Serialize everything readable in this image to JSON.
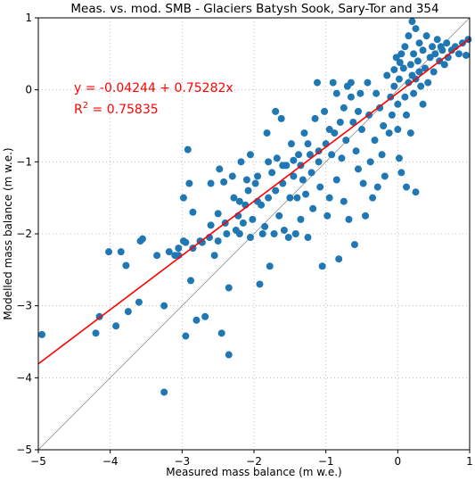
{
  "chart_data": {
    "type": "scatter",
    "title": "Meas. vs. mod. SMB - Glaciers Batysh Sook, Sary-Tor and 354",
    "xlabel": "Measured mass balance (m w.e.)",
    "ylabel": "Modelled mass balance (m w.e.)",
    "xlim": [
      -5,
      1
    ],
    "ylim": [
      -5,
      1
    ],
    "xticks": [
      -5,
      -4,
      -3,
      -2,
      -1,
      0,
      1
    ],
    "yticks": [
      -5,
      -4,
      -3,
      -2,
      -1,
      0,
      1
    ],
    "grid": true,
    "point_color": "#1f77b4",
    "fit_line_color": "#ff0000",
    "one_to_one_line_color": "#808080",
    "regression": {
      "intercept": -0.04244,
      "slope": 0.75282,
      "equation_text": "y = -0.04244 + 0.75282x",
      "r2_prefix": "R",
      "r2_sup": "2",
      "r2_rest": " = 0.75835"
    },
    "points": [
      [
        -4.95,
        -3.4
      ],
      [
        -4.2,
        -3.38
      ],
      [
        -4.15,
        -3.15
      ],
      [
        -4.02,
        -2.25
      ],
      [
        -3.92,
        -3.28
      ],
      [
        -3.85,
        -2.25
      ],
      [
        -3.78,
        -2.44
      ],
      [
        -3.75,
        -3.08
      ],
      [
        -3.6,
        -2.95
      ],
      [
        -3.55,
        -2.07
      ],
      [
        -3.58,
        -2.1
      ],
      [
        -3.25,
        -3.0
      ],
      [
        -3.25,
        -4.2
      ],
      [
        -3.18,
        -2.25
      ],
      [
        -3.1,
        -2.3
      ],
      [
        -3.05,
        -2.3
      ],
      [
        -2.98,
        -2.1
      ],
      [
        -2.95,
        -3.42
      ],
      [
        -2.95,
        -2.12
      ],
      [
        -2.98,
        -1.5
      ],
      [
        -2.9,
        -1.3
      ],
      [
        -2.92,
        -0.83
      ],
      [
        -2.88,
        -2.65
      ],
      [
        -2.85,
        -2.2
      ],
      [
        -2.8,
        -3.2
      ],
      [
        -2.75,
        -2.1
      ],
      [
        -2.72,
        -2.12
      ],
      [
        -2.68,
        -3.15
      ],
      [
        -2.62,
        -2.05
      ],
      [
        -2.6,
        -1.3
      ],
      [
        -2.55,
        -2.3
      ],
      [
        -2.5,
        -1.72
      ],
      [
        -2.5,
        -2.1
      ],
      [
        -2.48,
        -1.1
      ],
      [
        -2.45,
        -3.38
      ],
      [
        -2.42,
        -1.28
      ],
      [
        -2.4,
        -1.85
      ],
      [
        -2.38,
        -2.0
      ],
      [
        -2.35,
        -3.68
      ],
      [
        -2.35,
        -2.75
      ],
      [
        -2.3,
        -1.2
      ],
      [
        -2.28,
        -1.5
      ],
      [
        -2.25,
        -1.95
      ],
      [
        -2.22,
        -1.75
      ],
      [
        -2.2,
        -1.55
      ],
      [
        -2.2,
        -2.0
      ],
      [
        -2.18,
        -1.0
      ],
      [
        -2.15,
        -1.85
      ],
      [
        -2.12,
        -1.6
      ],
      [
        -2.1,
        -1.25
      ],
      [
        -2.08,
        -1.4
      ],
      [
        -2.05,
        -0.9
      ],
      [
        -2.05,
        -2.05
      ],
      [
        -2.02,
        -1.8
      ],
      [
        -1.98,
        -1.3
      ],
      [
        -1.95,
        -1.2
      ],
      [
        -1.92,
        -2.7
      ],
      [
        -1.9,
        -1.6
      ],
      [
        -1.88,
        -2.0
      ],
      [
        -1.85,
        -1.9
      ],
      [
        -1.82,
        -0.6
      ],
      [
        -1.8,
        -1.0
      ],
      [
        -1.8,
        -1.5
      ],
      [
        -1.78,
        -2.45
      ],
      [
        -1.75,
        -1.15
      ],
      [
        -1.72,
        -2.0
      ],
      [
        -1.7,
        -0.3
      ],
      [
        -1.68,
        -0.95
      ],
      [
        -1.65,
        -1.75
      ],
      [
        -1.62,
        -0.4
      ],
      [
        -1.6,
        -1.3
      ],
      [
        -1.58,
        -1.95
      ],
      [
        -1.55,
        -1.05
      ],
      [
        -1.52,
        -2.05
      ],
      [
        -1.5,
        -1.5
      ],
      [
        -1.48,
        -0.75
      ],
      [
        -1.45,
        -1.2
      ],
      [
        -1.42,
        -2.0
      ],
      [
        -1.4,
        -1.5
      ],
      [
        -1.38,
        -0.9
      ],
      [
        -1.35,
        -1.8
      ],
      [
        -1.32,
        -1.25
      ],
      [
        -1.3,
        -0.6
      ],
      [
        -1.28,
        -1.45
      ],
      [
        -1.25,
        -2.05
      ],
      [
        -1.22,
        -0.9
      ],
      [
        -1.2,
        -1.15
      ],
      [
        -1.18,
        -1.65
      ],
      [
        -1.15,
        -0.4
      ],
      [
        -1.12,
        0.1
      ],
      [
        -1.1,
        -1.0
      ],
      [
        -1.08,
        -1.35
      ],
      [
        -1.05,
        -2.45
      ],
      [
        -1.02,
        -0.3
      ],
      [
        -1.0,
        -0.75
      ],
      [
        -0.98,
        -1.75
      ],
      [
        -0.95,
        -1.5
      ],
      [
        -0.92,
        -0.9
      ],
      [
        -0.9,
        0.1
      ],
      [
        -0.88,
        -0.6
      ],
      [
        -0.85,
        -1.25
      ],
      [
        -0.82,
        -2.35
      ],
      [
        -0.8,
        -0.45
      ],
      [
        -0.78,
        -0.95
      ],
      [
        -0.75,
        -1.55
      ],
      [
        -0.72,
        -0.7
      ],
      [
        -0.7,
        0.05
      ],
      [
        -0.68,
        -1.8
      ],
      [
        -0.65,
        -0.1
      ],
      [
        -0.62,
        -0.45
      ],
      [
        -0.6,
        -2.15
      ],
      [
        -0.58,
        -0.85
      ],
      [
        -0.55,
        -1.1
      ],
      [
        -0.52,
        -0.05
      ],
      [
        -0.5,
        -0.55
      ],
      [
        -0.48,
        -1.3
      ],
      [
        -0.45,
        -1.75
      ],
      [
        -0.42,
        0.1
      ],
      [
        -0.4,
        -0.35
      ],
      [
        -0.38,
        -1.0
      ],
      [
        -0.35,
        -1.5
      ],
      [
        -0.32,
        -0.7
      ],
      [
        -0.3,
        -0.05
      ],
      [
        -0.28,
        -1.35
      ],
      [
        -0.25,
        -0.25
      ],
      [
        -0.22,
        -0.9
      ],
      [
        -0.2,
        -0.5
      ],
      [
        -0.18,
        -1.2
      ],
      [
        -0.15,
        0.2
      ],
      [
        -0.12,
        -0.6
      ],
      [
        -0.1,
        -0.1
      ],
      [
        -0.08,
        -0.35
      ],
      [
        -0.05,
        0.05
      ],
      [
        -0.02,
        0.45
      ],
      [
        0.0,
        -0.2
      ],
      [
        0.0,
        -0.55
      ],
      [
        0.02,
        0.15
      ],
      [
        0.02,
        -0.95
      ],
      [
        0.05,
        0.5
      ],
      [
        0.05,
        -1.15
      ],
      [
        0.08,
        0.3
      ],
      [
        0.1,
        -0.1
      ],
      [
        0.1,
        0.6
      ],
      [
        0.12,
        -0.35
      ],
      [
        0.12,
        -1.35
      ],
      [
        0.15,
        0.1
      ],
      [
        0.15,
        0.75
      ],
      [
        0.18,
        0.35
      ],
      [
        0.18,
        -0.6
      ],
      [
        0.2,
        0.95
      ],
      [
        0.2,
        0.2
      ],
      [
        0.22,
        0.5
      ],
      [
        0.22,
        -0.05
      ],
      [
        0.25,
        0.15
      ],
      [
        0.25,
        0.85
      ],
      [
        0.25,
        -1.42
      ],
      [
        0.28,
        0.4
      ],
      [
        0.3,
        0.25
      ],
      [
        0.3,
        0.65
      ],
      [
        0.32,
        0.05
      ],
      [
        0.35,
        0.55
      ],
      [
        0.35,
        -0.2
      ],
      [
        0.38,
        0.3
      ],
      [
        0.4,
        0.75
      ],
      [
        0.42,
        0.1
      ],
      [
        0.45,
        0.45
      ],
      [
        0.48,
        0.6
      ],
      [
        0.5,
        0.25
      ],
      [
        0.52,
        0.5
      ],
      [
        0.55,
        0.7
      ],
      [
        0.58,
        0.4
      ],
      [
        0.6,
        0.6
      ],
      [
        0.62,
        0.55
      ],
      [
        0.65,
        0.35
      ],
      [
        0.68,
        0.65
      ],
      [
        0.7,
        0.45
      ],
      [
        0.75,
        0.55
      ],
      [
        0.8,
        0.6
      ],
      [
        0.85,
        0.5
      ],
      [
        0.9,
        0.65
      ],
      [
        0.95,
        0.48
      ],
      [
        0.98,
        0.7
      ],
      [
        -0.05,
        0.28
      ],
      [
        0.03,
        0.38
      ],
      [
        -1.95,
        -1.55
      ],
      [
        -1.7,
        -1.4
      ],
      [
        -1.45,
        -0.98
      ],
      [
        -1.25,
        -0.75
      ],
      [
        -0.95,
        -0.55
      ],
      [
        -0.75,
        -0.25
      ],
      [
        -0.55,
        -0.3
      ],
      [
        -2.6,
        -1.88
      ],
      [
        -2.85,
        -1.7
      ],
      [
        -3.35,
        -2.3
      ],
      [
        -3.05,
        -2.2
      ],
      [
        -1.6,
        -1.05
      ],
      [
        -1.35,
        -1.05
      ],
      [
        -1.1,
        -0.85
      ],
      [
        -0.85,
        -0.05
      ],
      [
        -0.65,
        0.1
      ]
    ]
  }
}
